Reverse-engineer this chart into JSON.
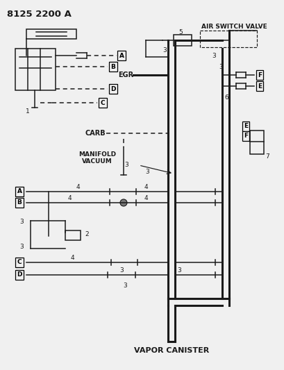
{
  "bg_color": "#f0f0f0",
  "lc": "#1a1a1a",
  "part_num": "8125 2200 A",
  "air_switch_valve": "AIR SWITCH VALVE",
  "egr_label": "EGR",
  "carb_label": "CARB",
  "manifold_label": "MANIFOLD\nVACUUM",
  "vapor_label": "VAPOR CANISTER",
  "lw_main": 2.2,
  "lw_thin": 1.1,
  "lw_dash": 0.85,
  "fs_label": 7.0,
  "fs_num": 6.5,
  "fs_title": 9.5
}
